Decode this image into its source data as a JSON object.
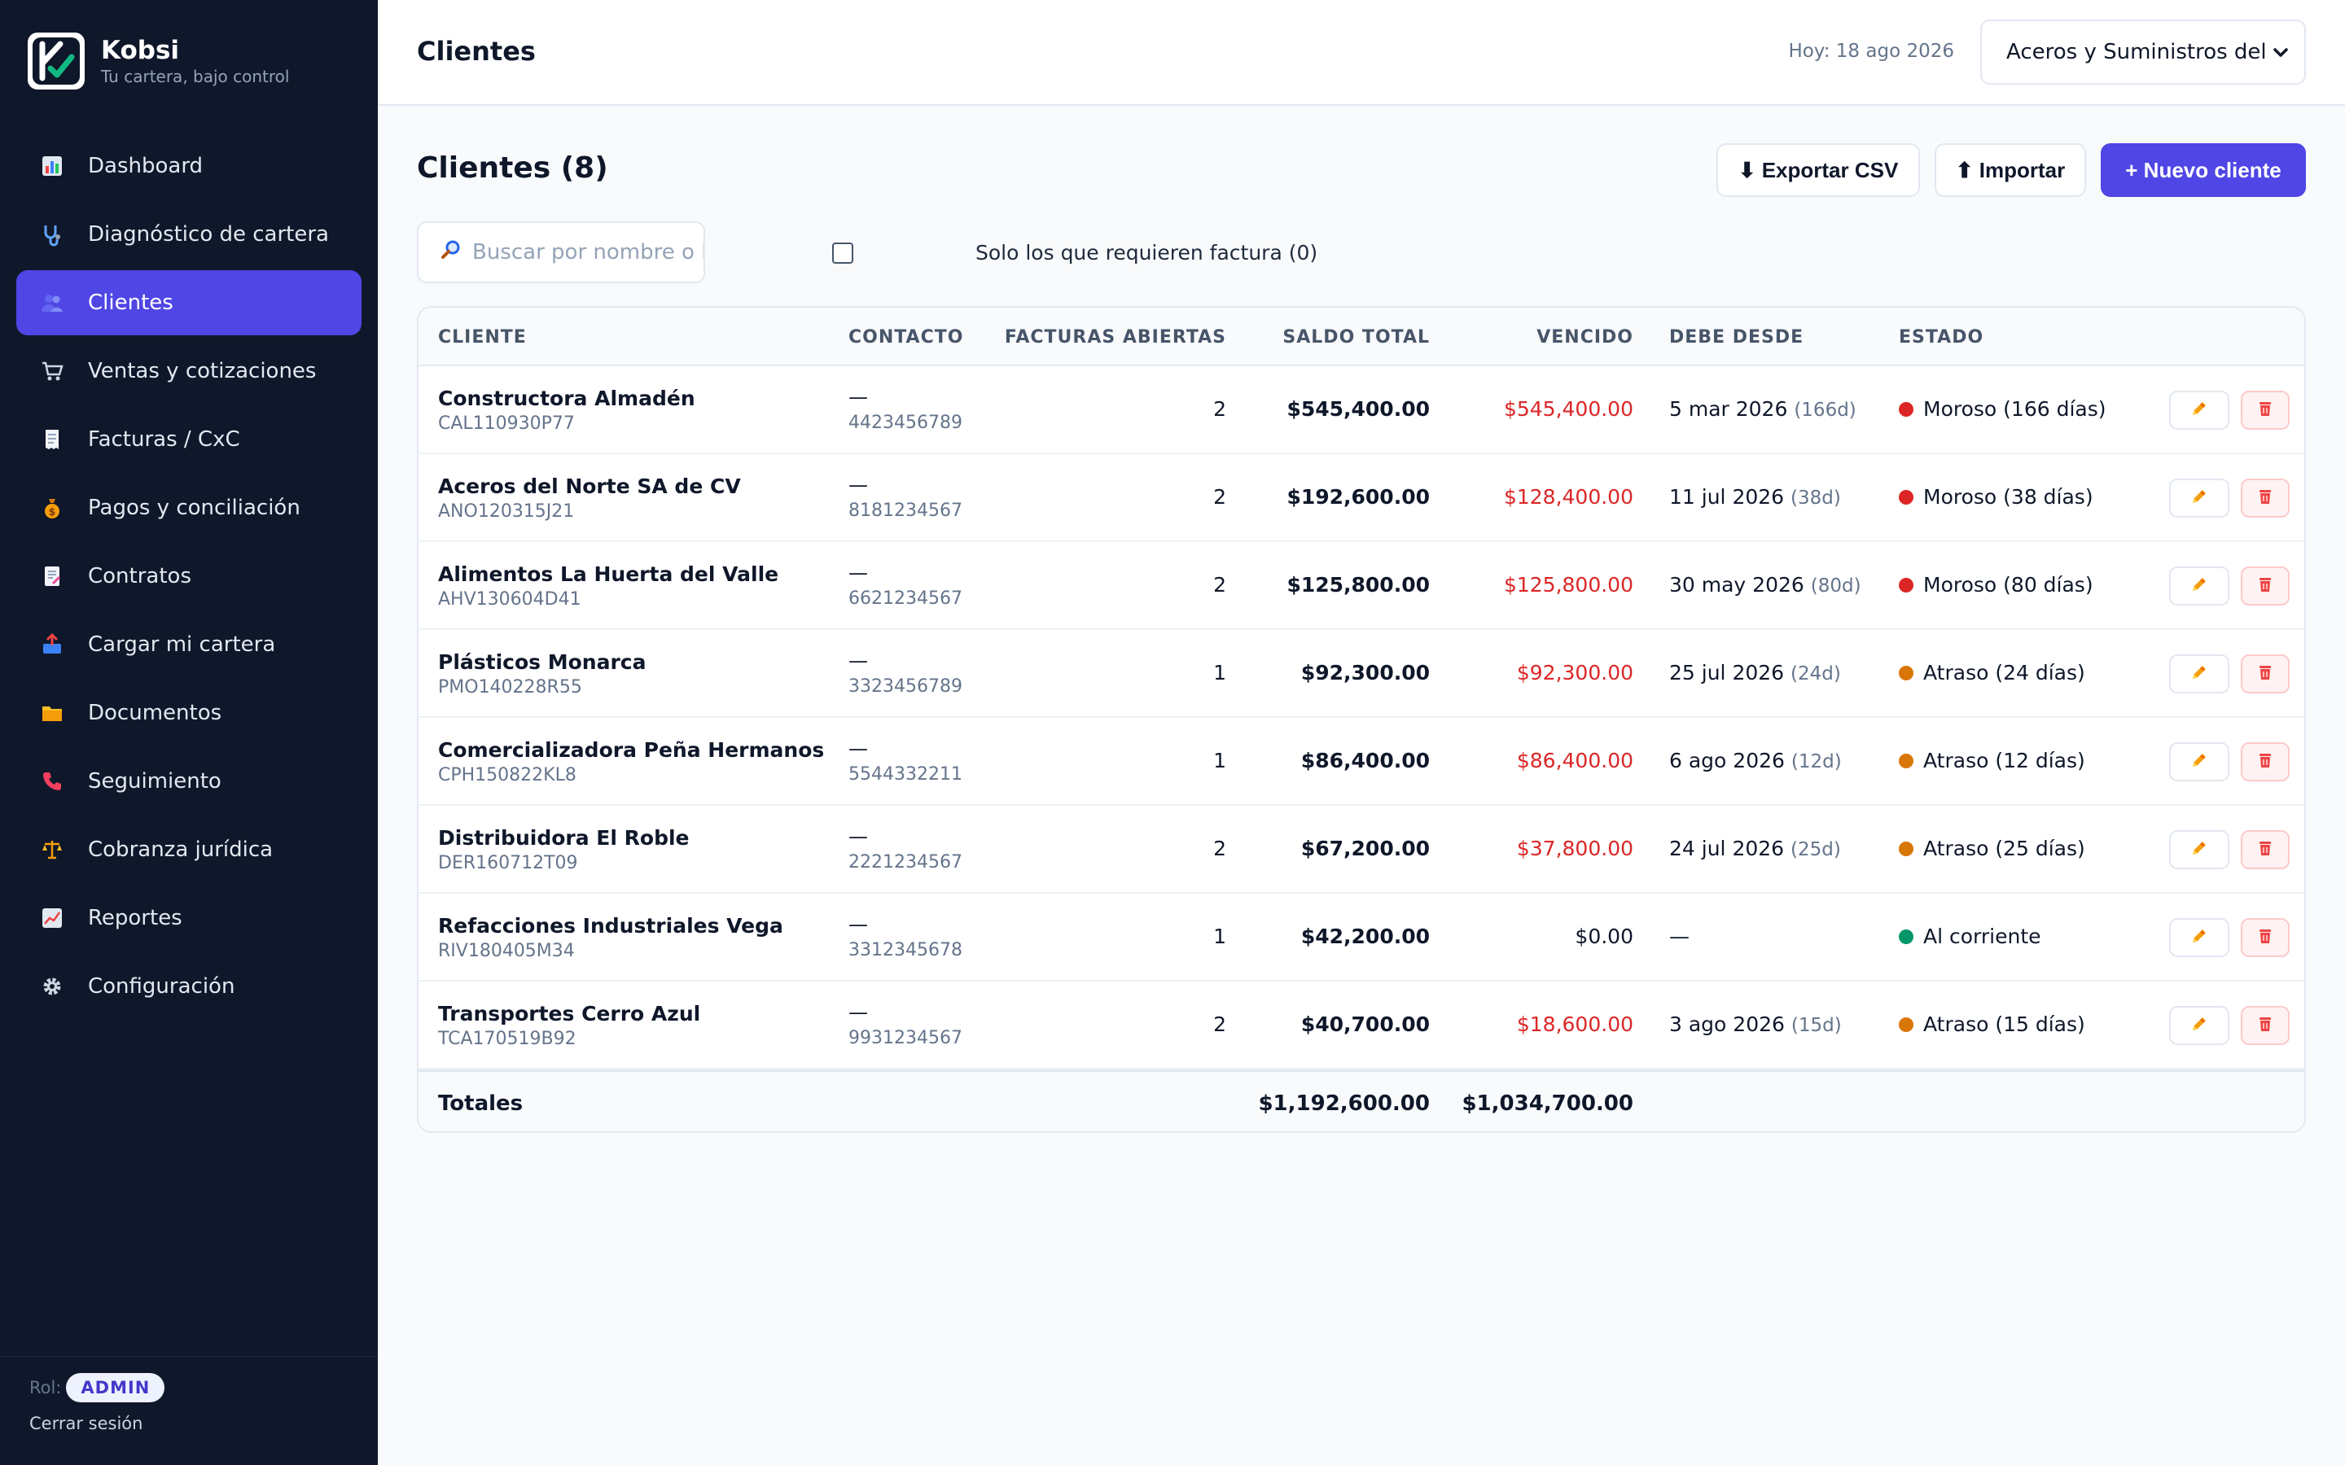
{
  "brand": {
    "name": "Kobsi",
    "tagline": "Tu cartera, bajo control"
  },
  "sidebar": {
    "items": [
      {
        "label": "Dashboard",
        "icon": "bar-chart-icon",
        "active": false
      },
      {
        "label": "Diagnóstico de cartera",
        "icon": "stethoscope-icon",
        "active": false
      },
      {
        "label": "Clientes",
        "icon": "users-icon",
        "active": true
      },
      {
        "label": "Ventas y cotizaciones",
        "icon": "cart-icon",
        "active": false
      },
      {
        "label": "Facturas / CxC",
        "icon": "receipt-icon",
        "active": false
      },
      {
        "label": "Pagos y conciliación",
        "icon": "money-bag-icon",
        "active": false
      },
      {
        "label": "Contratos",
        "icon": "contract-icon",
        "active": false
      },
      {
        "label": "Cargar mi cartera",
        "icon": "inbox-upload-icon",
        "active": false
      },
      {
        "label": "Documentos",
        "icon": "folder-icon",
        "active": false
      },
      {
        "label": "Seguimiento",
        "icon": "phone-icon",
        "active": false
      },
      {
        "label": "Cobranza jurídica",
        "icon": "scales-icon",
        "active": false
      },
      {
        "label": "Reportes",
        "icon": "trend-chart-icon",
        "active": false
      },
      {
        "label": "Configuración",
        "icon": "gear-icon",
        "active": false
      }
    ],
    "role_label": "Rol:",
    "role_value": "ADMIN",
    "logout_label": "Cerrar sesión"
  },
  "header": {
    "title": "Clientes",
    "date": "Hoy: 18 ago 2026",
    "company_selected": "Aceros y Suministros del B"
  },
  "main": {
    "title": "Clientes (8)",
    "buttons": {
      "export": "⬇ Exportar CSV",
      "import": "⬆ Importar",
      "new": "+ Nuevo cliente"
    },
    "search_placeholder": "Buscar por nombre o RFC",
    "filter_label": "Solo los que requieren factura (0)",
    "filter_checked": false
  },
  "table": {
    "columns": [
      "CLIENTE",
      "CONTACTO",
      "FACTURAS ABIERTAS",
      "SALDO TOTAL",
      "VENCIDO",
      "DEBE DESDE",
      "ESTADO"
    ],
    "rows": [
      {
        "name": "Constructora Almadén",
        "rfc": "CAL110930P77",
        "contact": "—",
        "phone": "4423456789",
        "open_invoices": "2",
        "balance": "$545,400.00",
        "overdue": "$545,400.00",
        "overdue_zero": false,
        "since": "5 mar 2026",
        "since_days": "(166d)",
        "status": "Moroso (166 días)",
        "status_color": "#dc2626"
      },
      {
        "name": "Aceros del Norte SA de CV",
        "rfc": "ANO120315J21",
        "contact": "—",
        "phone": "8181234567",
        "open_invoices": "2",
        "balance": "$192,600.00",
        "overdue": "$128,400.00",
        "overdue_zero": false,
        "since": "11 jul 2026",
        "since_days": "(38d)",
        "status": "Moroso (38 días)",
        "status_color": "#dc2626"
      },
      {
        "name": "Alimentos La Huerta del Valle",
        "rfc": "AHV130604D41",
        "contact": "—",
        "phone": "6621234567",
        "open_invoices": "2",
        "balance": "$125,800.00",
        "overdue": "$125,800.00",
        "overdue_zero": false,
        "since": "30 may 2026",
        "since_days": "(80d)",
        "status": "Moroso (80 días)",
        "status_color": "#dc2626"
      },
      {
        "name": "Plásticos Monarca",
        "rfc": "PMO140228R55",
        "contact": "—",
        "phone": "3323456789",
        "open_invoices": "1",
        "balance": "$92,300.00",
        "overdue": "$92,300.00",
        "overdue_zero": false,
        "since": "25 jul 2026",
        "since_days": "(24d)",
        "status": "Atraso (24 días)",
        "status_color": "#d97706"
      },
      {
        "name": "Comercializadora Peña Hermanos",
        "rfc": "CPH150822KL8",
        "contact": "—",
        "phone": "5544332211",
        "open_invoices": "1",
        "balance": "$86,400.00",
        "overdue": "$86,400.00",
        "overdue_zero": false,
        "since": "6 ago 2026",
        "since_days": "(12d)",
        "status": "Atraso (12 días)",
        "status_color": "#d97706"
      },
      {
        "name": "Distribuidora El Roble",
        "rfc": "DER160712T09",
        "contact": "—",
        "phone": "2221234567",
        "open_invoices": "2",
        "balance": "$67,200.00",
        "overdue": "$37,800.00",
        "overdue_zero": false,
        "since": "24 jul 2026",
        "since_days": "(25d)",
        "status": "Atraso (25 días)",
        "status_color": "#d97706"
      },
      {
        "name": "Refacciones Industriales Vega",
        "rfc": "RIV180405M34",
        "contact": "—",
        "phone": "3312345678",
        "open_invoices": "1",
        "balance": "$42,200.00",
        "overdue": "$0.00",
        "overdue_zero": true,
        "since": "—",
        "since_days": "",
        "status": "Al corriente",
        "status_color": "#059669"
      },
      {
        "name": "Transportes Cerro Azul",
        "rfc": "TCA170519B92",
        "contact": "—",
        "phone": "9931234567",
        "open_invoices": "2",
        "balance": "$40,700.00",
        "overdue": "$18,600.00",
        "overdue_zero": false,
        "since": "3 ago 2026",
        "since_days": "(15d)",
        "status": "Atraso (15 días)",
        "status_color": "#d97706"
      }
    ],
    "totals": {
      "label": "Totales",
      "balance": "$1,192,600.00",
      "overdue": "$1,034,700.00"
    }
  },
  "colors": {
    "accent": "#4f46e5",
    "sidebar_bg": "#0f172a",
    "overdue_red": "#dc2626",
    "late_orange": "#d97706",
    "ok_green": "#059669"
  }
}
